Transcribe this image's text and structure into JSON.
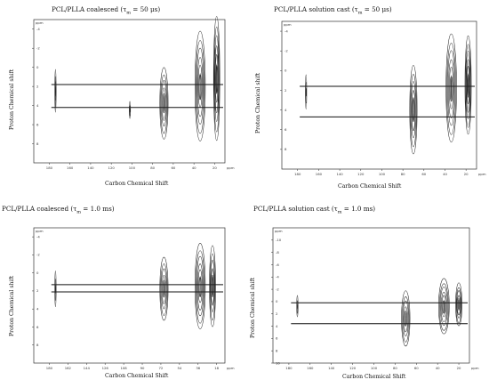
{
  "chart_data": [
    {
      "type": "contour",
      "title": "PCL/PLLA coalesced (τm = 50 μs)",
      "title_main": "PCL/PLLA coalesced (",
      "title_tau": "τ",
      "title_sub": "m",
      "title_rest": " = 50 μs)",
      "xlabel": "Carbon Chemical Shift",
      "ylabel": "Proton Chemical shift",
      "unit_label": "ppm",
      "x_unit_label": "ppm",
      "xlim": [
        195,
        10
      ],
      "ylim": [
        -5,
        10
      ],
      "x_ticks": [
        180,
        160,
        140,
        120,
        100,
        80,
        60,
        40,
        20
      ],
      "y_ticks": [
        -4,
        -2,
        0,
        2,
        4,
        6,
        8
      ],
      "horizontal_lines": [
        1.8,
        4.2
      ],
      "contours": [
        {
          "carbon": 174,
          "proton": 2.5,
          "width_ppm": 1.2,
          "height_ppm": 4.5,
          "rings": 3
        },
        {
          "carbon": 102,
          "proton": 4.5,
          "width_ppm": 1.2,
          "height_ppm": 1.8,
          "rings": 2
        },
        {
          "carbon": 69,
          "proton": 3.8,
          "width_ppm": 8,
          "height_ppm": 7.5,
          "rings": 5
        },
        {
          "carbon": 34,
          "proton": 2.0,
          "width_ppm": 10,
          "height_ppm": 11.5,
          "rings": 6
        },
        {
          "carbon": 18,
          "proton": 1.2,
          "width_ppm": 6,
          "height_ppm": 13,
          "rings": 6
        }
      ]
    },
    {
      "type": "contour",
      "title": "PCL/PLLA solution cast (τm = 50 μs)",
      "title_main": "PCL/PLLA solution cast (",
      "title_tau": "τ",
      "title_sub": "m",
      "title_rest": " = 50 μs)",
      "xlabel": "Carbon Chemical Shift",
      "ylabel": "Proton Chemical shift",
      "unit_label": "ppm",
      "x_unit_label": "ppm",
      "xlim": [
        195,
        10
      ],
      "ylim": [
        -5,
        10
      ],
      "x_ticks": [
        180,
        160,
        140,
        120,
        100,
        80,
        60,
        40,
        20
      ],
      "y_ticks": [
        -4,
        -2,
        0,
        2,
        4,
        6,
        8
      ],
      "horizontal_lines": [
        1.6,
        4.7
      ],
      "contours": [
        {
          "carbon": 172,
          "proton": 2.2,
          "width_ppm": 1.2,
          "height_ppm": 3.5,
          "rings": 2
        },
        {
          "carbon": 70,
          "proton": 4.0,
          "width_ppm": 7,
          "height_ppm": 9,
          "rings": 5
        },
        {
          "carbon": 34,
          "proton": 1.8,
          "width_ppm": 10,
          "height_ppm": 11,
          "rings": 6
        },
        {
          "carbon": 18,
          "proton": 1.5,
          "width_ppm": 6,
          "height_ppm": 10,
          "rings": 6
        }
      ]
    },
    {
      "type": "contour",
      "title": "PCL/PLLA coalesced (τm = 1.0 ms)",
      "title_main": "PCL/PLLA coalesced (",
      "title_tau": "τ",
      "title_sub": "m",
      "title_rest": " = 1.0 ms)",
      "xlabel": "Carbon Chemical Shift",
      "ylabel": "Proton Chemical shift",
      "unit_label": "ppm",
      "x_unit_label": "ppm",
      "xlim": [
        195,
        10
      ],
      "ylim": [
        -5,
        10
      ],
      "x_ticks": [
        180,
        162,
        144,
        126,
        108,
        90,
        72,
        54,
        36,
        18
      ],
      "y_ticks": [
        -4,
        -2,
        0,
        2,
        4,
        6,
        8
      ],
      "horizontal_lines": [
        1.3,
        2.1
      ],
      "contours": [
        {
          "carbon": 174,
          "proton": 1.8,
          "width_ppm": 1.2,
          "height_ppm": 4,
          "rings": 2
        },
        {
          "carbon": 69,
          "proton": 1.8,
          "width_ppm": 8,
          "height_ppm": 7,
          "rings": 5
        },
        {
          "carbon": 34,
          "proton": 1.5,
          "width_ppm": 10,
          "height_ppm": 9.5,
          "rings": 6
        },
        {
          "carbon": 22,
          "proton": 1.5,
          "width_ppm": 6,
          "height_ppm": 9,
          "rings": 5
        }
      ]
    },
    {
      "type": "contour",
      "title": "PCL/PLLA solution cast (τm = 1.0 ms)",
      "title_main": "PCL/PLLA solution cast (",
      "title_tau": "τ",
      "title_sub": "m",
      "title_rest": " = 1.0 ms)",
      "xlabel": "Carbon Chemical Shift",
      "ylabel": "Proton Chemical shift",
      "unit_label": "ppm",
      "x_unit_label": "ppm",
      "xlim": [
        195,
        10
      ],
      "ylim": [
        -12,
        10
      ],
      "x_ticks": [
        180,
        160,
        140,
        120,
        100,
        80,
        60,
        40,
        20
      ],
      "y_ticks": [
        -10,
        -8,
        -6,
        -4,
        -2,
        0,
        2,
        4,
        6,
        8,
        10
      ],
      "horizontal_lines": [
        0.2,
        3.6
      ],
      "contours": [
        {
          "carbon": 172,
          "proton": 0.8,
          "width_ppm": 1.2,
          "height_ppm": 3.5,
          "rings": 2
        },
        {
          "carbon": 70,
          "proton": 2.8,
          "width_ppm": 8,
          "height_ppm": 9,
          "rings": 5
        },
        {
          "carbon": 34,
          "proton": 0.8,
          "width_ppm": 10,
          "height_ppm": 9,
          "rings": 6
        },
        {
          "carbon": 20,
          "proton": 0.5,
          "width_ppm": 6,
          "height_ppm": 7,
          "rings": 5
        }
      ]
    }
  ]
}
